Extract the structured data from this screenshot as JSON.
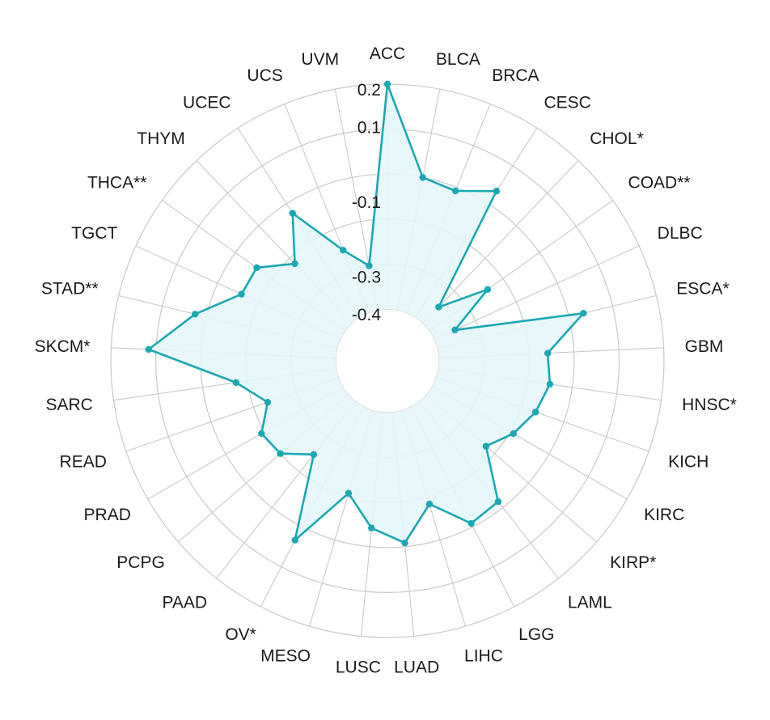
{
  "chart_data": {
    "type": "radar",
    "title": "",
    "categories": [
      "ACC",
      "BLCA",
      "BRCA",
      "CESC",
      "CHOL*",
      "COAD**",
      "DLBC",
      "ESCA*",
      "GBM",
      "HNSC*",
      "KICH",
      "KIRC",
      "KIRP*",
      "LAML",
      "LGG",
      "LIHC",
      "LUAD",
      "LUSC",
      "MESO",
      "OV*",
      "PAAD",
      "PCPG",
      "PRAD",
      "READ",
      "SARC",
      "SKCM*",
      "STAD**",
      "TGCT",
      "THCA**",
      "THYM",
      "UCEC",
      "UCS",
      "UVM"
    ],
    "rticks": [
      0.2,
      0.1,
      -0.1,
      -0.3,
      -0.4
    ],
    "series": [
      {
        "values": [
          0.2,
          -0.04,
          -0.05,
          0.0,
          -0.34,
          -0.21,
          -0.34,
          0.0,
          -0.11,
          -0.1,
          -0.12,
          -0.15,
          -0.19,
          -0.06,
          -0.05,
          -0.14,
          -0.05,
          -0.09,
          -0.17,
          0.0,
          -0.22,
          -0.16,
          -0.15,
          -0.2,
          -0.13,
          0.1,
          -0.01,
          -0.11,
          -0.11,
          -0.18,
          -0.07,
          -0.22,
          -0.28
        ],
        "color": "#1aa8b4",
        "fill": "#e6f6fa"
      }
    ]
  }
}
